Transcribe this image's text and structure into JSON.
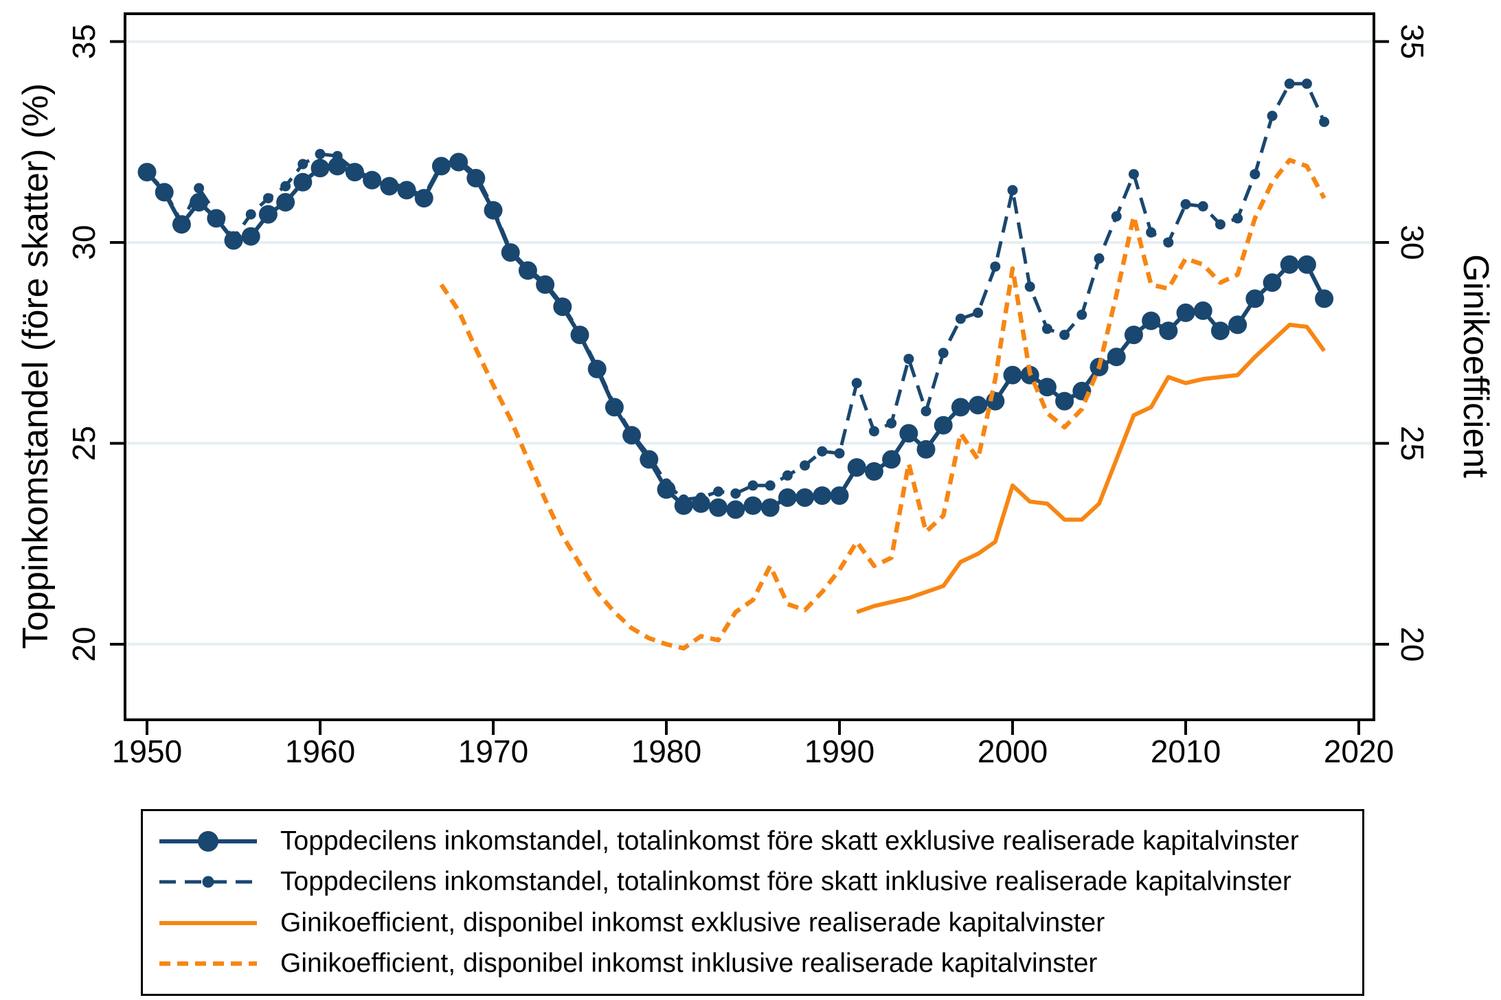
{
  "figure": {
    "kind": "static-statistical-figure",
    "background": "#ffffff",
    "frame_color": "#000000",
    "gridline_color": "#e6eef3"
  },
  "chart_data": {
    "type": "line",
    "title": "",
    "x_axis": {
      "ticks": [
        1950,
        1960,
        1970,
        1980,
        1990,
        2000,
        2010,
        2020
      ],
      "range_years": [
        1948.7,
        2020.9
      ]
    },
    "left_axis": {
      "label": "Toppinkomstandel (före skatter) (%)",
      "ticks": [
        20,
        25,
        30,
        35
      ],
      "range": [
        18.1,
        35.7
      ]
    },
    "right_axis": {
      "label": "Ginikoefficient",
      "ticks": [
        20,
        25,
        30,
        35
      ],
      "range": [
        18.1,
        35.7
      ]
    },
    "grid": "horizontal-only",
    "legend_position": "below-plot-boxed",
    "series": [
      {
        "name": "top10-excl-capital-gains",
        "label": "Toppdecilens inkomstandel, totalinkomst före skatt exklusive realiserade kapitalvinster",
        "color": "#1a476f",
        "style": "solid",
        "marker": "large-circle",
        "axis": "left",
        "start_year": 1950,
        "values": [
          31.75,
          31.25,
          30.45,
          31.0,
          30.6,
          30.05,
          30.15,
          30.7,
          31.0,
          31.5,
          31.85,
          31.9,
          31.75,
          31.55,
          31.4,
          31.3,
          31.1,
          31.9,
          32.0,
          31.6,
          30.8,
          29.75,
          29.3,
          28.95,
          28.4,
          27.7,
          26.85,
          25.9,
          25.2,
          24.6,
          23.85,
          23.45,
          23.5,
          23.4,
          23.35,
          23.45,
          23.4,
          23.65,
          23.65,
          23.7,
          23.7,
          24.4,
          24.3,
          24.6,
          25.25,
          24.85,
          25.45,
          25.9,
          25.95,
          26.05,
          26.7,
          26.7,
          26.4,
          26.05,
          26.3,
          26.9,
          27.15,
          27.7,
          28.05,
          27.8,
          28.25,
          28.3,
          27.8,
          27.95,
          28.6,
          29.0,
          29.45,
          29.45,
          28.6
        ]
      },
      {
        "name": "top10-incl-capital-gains",
        "label": "Toppdecilens inkomstandel, totalinkomst före skatt inklusive realiserade kapitalvinster",
        "color": "#1a476f",
        "style": "long-dash",
        "marker": "small-circle",
        "axis": "left",
        "start_year": 1950,
        "values": [
          31.75,
          31.3,
          30.5,
          31.35,
          30.7,
          30.1,
          30.7,
          31.1,
          31.4,
          31.95,
          32.2,
          32.15,
          31.8,
          31.6,
          31.5,
          31.35,
          31.15,
          31.95,
          32.05,
          31.7,
          30.85,
          29.8,
          29.35,
          29.0,
          28.45,
          27.75,
          26.9,
          25.95,
          25.25,
          24.7,
          24.0,
          23.6,
          23.65,
          23.8,
          23.75,
          23.95,
          23.95,
          24.2,
          24.45,
          24.8,
          24.75,
          26.5,
          25.3,
          25.5,
          27.1,
          25.8,
          27.25,
          28.1,
          28.25,
          29.4,
          31.3,
          28.9,
          27.85,
          27.7,
          28.2,
          29.6,
          30.65,
          31.7,
          30.25,
          30.0,
          30.95,
          30.9,
          30.45,
          30.6,
          31.7,
          33.15,
          33.95,
          33.95,
          33.0
        ]
      },
      {
        "name": "gini-excl-capital-gains",
        "label": "Ginikoefficient, disponibel inkomst exklusive realiserade kapitalvinster",
        "color": "#f78613",
        "style": "solid",
        "marker": "none",
        "axis": "right",
        "start_year": 1991,
        "values": [
          20.8,
          20.95,
          21.05,
          21.15,
          21.3,
          21.45,
          22.05,
          22.25,
          22.55,
          23.95,
          23.55,
          23.5,
          23.1,
          23.1,
          23.5,
          24.6,
          25.7,
          25.9,
          26.65,
          26.5,
          26.6,
          26.65,
          26.7,
          27.15,
          27.55,
          27.95,
          27.9,
          27.3
        ]
      },
      {
        "name": "gini-incl-capital-gains",
        "label": "Ginikoefficient, disponibel inkomst inklusive realiserade kapitalvinster",
        "color": "#f78613",
        "style": "short-dash",
        "marker": "none",
        "axis": "right",
        "start_year": 1967,
        "values": [
          28.95,
          28.3,
          27.35,
          26.45,
          25.6,
          24.6,
          23.6,
          22.7,
          22.0,
          21.3,
          20.8,
          20.4,
          20.15,
          20.0,
          19.9,
          20.2,
          20.1,
          20.8,
          21.1,
          21.95,
          21.0,
          20.85,
          21.3,
          21.85,
          22.55,
          21.95,
          22.15,
          24.5,
          22.8,
          23.2,
          25.25,
          24.6,
          26.6,
          29.35,
          26.75,
          25.75,
          25.4,
          25.85,
          26.9,
          28.7,
          30.65,
          28.95,
          28.85,
          29.6,
          29.45,
          29.0,
          29.2,
          30.6,
          31.5,
          32.05,
          31.9,
          31.1
        ]
      }
    ]
  }
}
